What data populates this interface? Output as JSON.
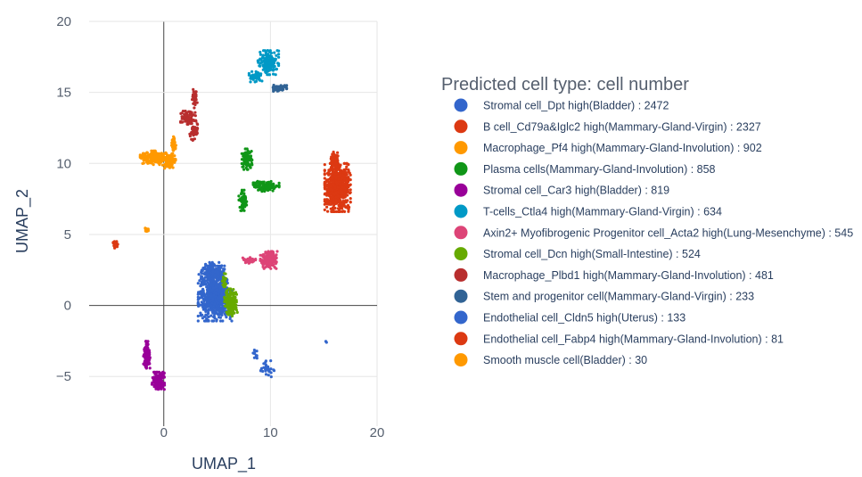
{
  "chart_data": {
    "type": "scatter",
    "title": "",
    "xlabel": "UMAP_1",
    "ylabel": "UMAP_2",
    "xlim": [
      -7,
      20
    ],
    "ylim": [
      -8.5,
      20
    ],
    "xticks": [
      0,
      10,
      20
    ],
    "yticks": [
      -5,
      0,
      5,
      10,
      15,
      20
    ],
    "xtick_labels": [
      "0",
      "10",
      "20"
    ],
    "ytick_labels": [
      "−5",
      "0",
      "5",
      "10",
      "15",
      "20"
    ],
    "grid": true,
    "zero_lines": true,
    "legend_title": "Predicted cell type: cell number",
    "legend_position": "right",
    "series": [
      {
        "name": "Stromal cell_Dpt high(Bladder) : 2472",
        "color": "#3366cc",
        "count": 2472,
        "clusters": [
          {
            "cx": 4.8,
            "cy": 0.6,
            "sx": 1.3,
            "sy": 1.4
          },
          {
            "cx": 4.6,
            "cy": 2.3,
            "sx": 0.9,
            "sy": 0.6
          }
        ]
      },
      {
        "name": "B cell_Cd79a&Iglc2 high(Mammary-Gland-Virgin) : 2327",
        "color": "#dc3912",
        "count": 2327,
        "clusters": [
          {
            "cx": 16.3,
            "cy": 8.3,
            "sx": 1.0,
            "sy": 1.4
          },
          {
            "cx": 16.0,
            "cy": 10.2,
            "sx": 0.4,
            "sy": 0.5
          }
        ]
      },
      {
        "name": "Macrophage_Pf4 high(Mammary-Gland-Involution) : 902",
        "color": "#ff9900",
        "count": 902,
        "clusters": [
          {
            "cx": -1.0,
            "cy": 10.4,
            "sx": 1.0,
            "sy": 0.4
          },
          {
            "cx": 0.5,
            "cy": 10.2,
            "sx": 0.5,
            "sy": 0.5
          },
          {
            "cx": 0.9,
            "cy": 11.4,
            "sx": 0.2,
            "sy": 0.4
          }
        ]
      },
      {
        "name": "Plasma cells(Mammary-Gland-Involution) : 858",
        "color": "#109618",
        "count": 858,
        "clusters": [
          {
            "cx": 7.8,
            "cy": 10.3,
            "sx": 0.4,
            "sy": 0.6
          },
          {
            "cx": 7.4,
            "cy": 7.4,
            "sx": 0.3,
            "sy": 0.6
          },
          {
            "cx": 9.6,
            "cy": 8.4,
            "sx": 1.0,
            "sy": 0.3
          }
        ]
      },
      {
        "name": "Stromal cell_Car3 high(Bladder) : 819",
        "color": "#990099",
        "count": 819,
        "clusters": [
          {
            "cx": -0.5,
            "cy": -5.3,
            "sx": 0.5,
            "sy": 0.5
          },
          {
            "cx": -1.6,
            "cy": -3.5,
            "sx": 0.25,
            "sy": 0.8
          }
        ]
      },
      {
        "name": "T-cells_Ctla4 high(Mammary-Gland-Virgin) : 634",
        "color": "#0099c6",
        "count": 634,
        "clusters": [
          {
            "cx": 9.8,
            "cy": 17.1,
            "sx": 0.8,
            "sy": 0.7
          },
          {
            "cx": 8.6,
            "cy": 16.1,
            "sx": 0.5,
            "sy": 0.3
          }
        ]
      },
      {
        "name": "Axin2+ Myofibrogenic Progenitor cell_Acta2 high(Lung-Mesenchyme) : 545",
        "color": "#dd4477",
        "count": 545,
        "clusters": [
          {
            "cx": 9.9,
            "cy": 3.2,
            "sx": 0.7,
            "sy": 0.5
          },
          {
            "cx": 8.0,
            "cy": 3.2,
            "sx": 0.5,
            "sy": 0.2
          }
        ]
      },
      {
        "name": "Stromal cell_Dcn high(Small-Intestine) : 524",
        "color": "#66aa00",
        "count": 524,
        "clusters": [
          {
            "cx": 6.3,
            "cy": 0.2,
            "sx": 0.5,
            "sy": 0.8
          },
          {
            "cx": 5.7,
            "cy": 1.8,
            "sx": 0.2,
            "sy": 0.4
          }
        ]
      },
      {
        "name": "Macrophage_Plbd1 high(Mammary-Gland-Involution) : 481",
        "color": "#b82e2e",
        "count": 481,
        "clusters": [
          {
            "cx": 2.3,
            "cy": 13.2,
            "sx": 0.6,
            "sy": 0.4
          },
          {
            "cx": 2.9,
            "cy": 14.6,
            "sx": 0.2,
            "sy": 0.6
          },
          {
            "cx": 2.8,
            "cy": 12.2,
            "sx": 0.3,
            "sy": 0.5
          }
        ]
      },
      {
        "name": "Stem and progenitor cell(Mammary-Gland-Virgin) : 233",
        "color": "#316395",
        "count": 233,
        "clusters": [
          {
            "cx": 10.8,
            "cy": 15.3,
            "sx": 0.6,
            "sy": 0.2
          }
        ]
      },
      {
        "name": "Endothelial cell_Cldn5 high(Uterus) : 133",
        "color": "#3366cc",
        "count": 133,
        "clusters": [
          {
            "cx": 9.7,
            "cy": -4.5,
            "sx": 0.6,
            "sy": 0.5
          },
          {
            "cx": 8.6,
            "cy": -3.5,
            "sx": 0.4,
            "sy": 0.3
          },
          {
            "cx": 15.4,
            "cy": -2.6,
            "sx": 0.3,
            "sy": 0.2
          }
        ]
      },
      {
        "name": "Endothelial cell_Fabp4 high(Mammary-Gland-Involution) : 81",
        "color": "#dc3912",
        "count": 81,
        "clusters": [
          {
            "cx": -4.5,
            "cy": 4.3,
            "sx": 0.2,
            "sy": 0.25
          }
        ]
      },
      {
        "name": "Smooth muscle cell(Bladder) : 30",
        "color": "#ff9900",
        "count": 30,
        "clusters": [
          {
            "cx": -1.6,
            "cy": 5.3,
            "sx": 0.12,
            "sy": 0.12
          }
        ]
      }
    ]
  }
}
